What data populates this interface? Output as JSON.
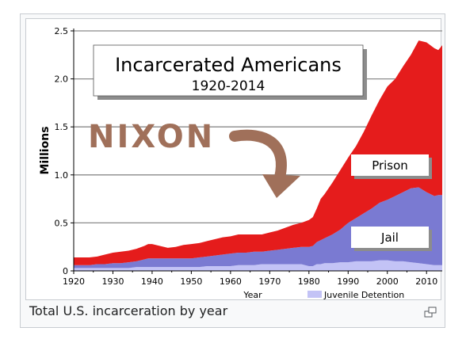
{
  "chart_data": {
    "type": "area",
    "title": "Incarcerated Americans",
    "subtitle": "1920-2014",
    "xlabel": "Year",
    "ylabel": "Millions",
    "xlim": [
      1920,
      2014
    ],
    "ylim": [
      0,
      2.5
    ],
    "x_ticks": [
      "1920",
      "1930",
      "1940",
      "1950",
      "1960",
      "1970",
      "1980",
      "1990",
      "2000",
      "2010"
    ],
    "y_ticks": [
      "0",
      "0.5",
      "1.0",
      "1.5",
      "2.0",
      "2.5"
    ],
    "grid": true,
    "legend": [
      "Juvenile Detention"
    ],
    "annotations": {
      "nixon": "NIXON",
      "prison": "Prison",
      "jail": "Jail"
    },
    "colors": {
      "prison": "#e51c1c",
      "jail": "#7a7ad2",
      "juvenile": "#c3c3f6",
      "nixon": "#a0705a"
    },
    "x": [
      1920,
      1922,
      1924,
      1926,
      1928,
      1930,
      1932,
      1934,
      1936,
      1938,
      1939,
      1940,
      1942,
      1944,
      1946,
      1948,
      1950,
      1952,
      1954,
      1956,
      1958,
      1960,
      1962,
      1964,
      1966,
      1968,
      1970,
      1972,
      1974,
      1976,
      1978,
      1980,
      1981,
      1982,
      1983,
      1984,
      1986,
      1988,
      1990,
      1992,
      1994,
      1996,
      1998,
      2000,
      2002,
      2004,
      2006,
      2008,
      2010,
      2012,
      2013,
      2014
    ],
    "series": [
      {
        "name": "Juvenile Detention",
        "values": [
          0.03,
          0.03,
          0.03,
          0.03,
          0.03,
          0.03,
          0.03,
          0.03,
          0.04,
          0.04,
          0.04,
          0.04,
          0.04,
          0.04,
          0.04,
          0.04,
          0.04,
          0.04,
          0.05,
          0.05,
          0.05,
          0.05,
          0.06,
          0.06,
          0.06,
          0.07,
          0.07,
          0.07,
          0.07,
          0.07,
          0.07,
          0.05,
          0.05,
          0.07,
          0.07,
          0.08,
          0.08,
          0.09,
          0.09,
          0.1,
          0.1,
          0.1,
          0.11,
          0.11,
          0.1,
          0.1,
          0.09,
          0.08,
          0.07,
          0.06,
          0.06,
          0.06
        ]
      },
      {
        "name": "Jail",
        "values": [
          0.06,
          0.06,
          0.06,
          0.07,
          0.07,
          0.08,
          0.08,
          0.09,
          0.1,
          0.12,
          0.13,
          0.13,
          0.13,
          0.13,
          0.13,
          0.13,
          0.13,
          0.14,
          0.15,
          0.16,
          0.17,
          0.18,
          0.19,
          0.19,
          0.2,
          0.2,
          0.21,
          0.22,
          0.23,
          0.24,
          0.25,
          0.25,
          0.26,
          0.3,
          0.32,
          0.34,
          0.38,
          0.43,
          0.5,
          0.55,
          0.6,
          0.65,
          0.71,
          0.74,
          0.78,
          0.82,
          0.86,
          0.87,
          0.82,
          0.78,
          0.79,
          0.79
        ]
      },
      {
        "name": "Prison",
        "values": [
          0.14,
          0.14,
          0.14,
          0.15,
          0.17,
          0.19,
          0.2,
          0.21,
          0.23,
          0.26,
          0.28,
          0.28,
          0.26,
          0.24,
          0.25,
          0.27,
          0.28,
          0.29,
          0.31,
          0.33,
          0.35,
          0.36,
          0.38,
          0.38,
          0.38,
          0.38,
          0.4,
          0.42,
          0.45,
          0.48,
          0.5,
          0.53,
          0.56,
          0.65,
          0.75,
          0.8,
          0.92,
          1.05,
          1.18,
          1.3,
          1.45,
          1.62,
          1.78,
          1.92,
          2.0,
          2.13,
          2.25,
          2.4,
          2.38,
          2.32,
          2.3,
          2.35
        ]
      }
    ]
  },
  "caption": "Total U.S. incarceration by year",
  "magnify_icon": "magnify-clip-icon"
}
